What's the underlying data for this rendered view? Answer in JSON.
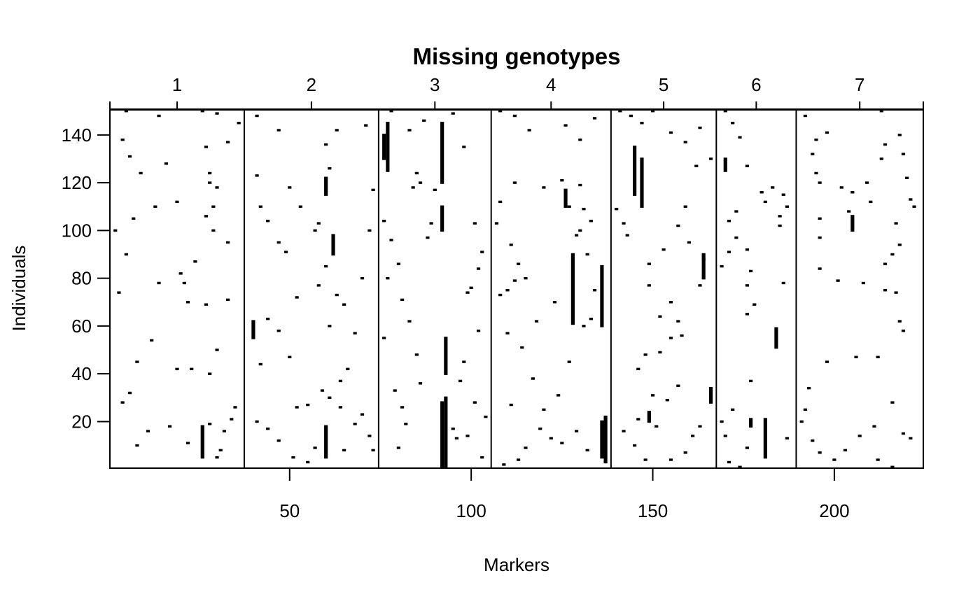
{
  "chart_data": {
    "type": "heatmap",
    "title": "Missing genotypes",
    "xlabel": "Markers",
    "ylabel": "Individuals",
    "xlim": [
      1,
      224
    ],
    "ylim": [
      1,
      150
    ],
    "x_ticks": [
      50,
      100,
      150,
      200
    ],
    "y_ticks": [
      20,
      40,
      60,
      80,
      100,
      120,
      140
    ],
    "grid": false,
    "legend": "none",
    "missing_color": "#000000",
    "chromosomes": [
      {
        "name": "1",
        "start": 1,
        "end": 37
      },
      {
        "name": "2",
        "start": 38,
        "end": 74
      },
      {
        "name": "3",
        "start": 75,
        "end": 105
      },
      {
        "name": "4",
        "start": 106,
        "end": 138
      },
      {
        "name": "5",
        "start": 139,
        "end": 167
      },
      {
        "name": "6",
        "start": 168,
        "end": 189
      },
      {
        "name": "7",
        "start": 190,
        "end": 224
      }
    ],
    "missing_runs": [
      {
        "marker": 93,
        "from": 1,
        "to": 30
      },
      {
        "marker": 92,
        "from": 1,
        "to": 28
      },
      {
        "marker": 92,
        "from": 120,
        "to": 145
      },
      {
        "marker": 92,
        "from": 100,
        "to": 110
      },
      {
        "marker": 93,
        "from": 40,
        "to": 55
      },
      {
        "marker": 128,
        "from": 61,
        "to": 90
      },
      {
        "marker": 136,
        "from": 60,
        "to": 85
      },
      {
        "marker": 137,
        "from": 3,
        "to": 22
      },
      {
        "marker": 136,
        "from": 5,
        "to": 20
      },
      {
        "marker": 181,
        "from": 5,
        "to": 21
      },
      {
        "marker": 184,
        "from": 51,
        "to": 59
      },
      {
        "marker": 145,
        "from": 115,
        "to": 135
      },
      {
        "marker": 147,
        "from": 110,
        "to": 130
      },
      {
        "marker": 77,
        "from": 125,
        "to": 145
      },
      {
        "marker": 76,
        "from": 130,
        "to": 140
      },
      {
        "marker": 40,
        "from": 55,
        "to": 62
      },
      {
        "marker": 60,
        "from": 115,
        "to": 122
      },
      {
        "marker": 62,
        "from": 90,
        "to": 98
      },
      {
        "marker": 60,
        "from": 5,
        "to": 18
      },
      {
        "marker": 26,
        "from": 5,
        "to": 18
      },
      {
        "marker": 126,
        "from": 110,
        "to": 117
      },
      {
        "marker": 166,
        "from": 28,
        "to": 34
      },
      {
        "marker": 164,
        "from": 80,
        "to": 90
      },
      {
        "marker": 170,
        "from": 125,
        "to": 130
      },
      {
        "marker": 205,
        "from": 100,
        "to": 106
      },
      {
        "marker": 177,
        "from": 18,
        "to": 21
      },
      {
        "marker": 149,
        "from": 20,
        "to": 24
      }
    ],
    "missing_points": [
      [
        5,
        150
      ],
      [
        14,
        148
      ],
      [
        26,
        150
      ],
      [
        30,
        149
      ],
      [
        36,
        145
      ],
      [
        33,
        137
      ],
      [
        27,
        135
      ],
      [
        28,
        124
      ],
      [
        28,
        120
      ],
      [
        30,
        118
      ],
      [
        29,
        110
      ],
      [
        27,
        106
      ],
      [
        29,
        100
      ],
      [
        33,
        95
      ],
      [
        24,
        87
      ],
      [
        20,
        82
      ],
      [
        14,
        78
      ],
      [
        21,
        78
      ],
      [
        22,
        70
      ],
      [
        27,
        69
      ],
      [
        33,
        71
      ],
      [
        30,
        50
      ],
      [
        12,
        54
      ],
      [
        8,
        45
      ],
      [
        19,
        42
      ],
      [
        28,
        40
      ],
      [
        23,
        42
      ],
      [
        35,
        26
      ],
      [
        34,
        21
      ],
      [
        32,
        16
      ],
      [
        28,
        19
      ],
      [
        31,
        8
      ],
      [
        30,
        5
      ],
      [
        8,
        10
      ],
      [
        11,
        16
      ],
      [
        17,
        18
      ],
      [
        22,
        11
      ],
      [
        4,
        28
      ],
      [
        6,
        32
      ],
      [
        3,
        74
      ],
      [
        5,
        90
      ],
      [
        2,
        100
      ],
      [
        7,
        105
      ],
      [
        13,
        110
      ],
      [
        19,
        112
      ],
      [
        16,
        128
      ],
      [
        6,
        131
      ],
      [
        9,
        124
      ],
      [
        4,
        138
      ],
      [
        41,
        148
      ],
      [
        47,
        142
      ],
      [
        50,
        118
      ],
      [
        53,
        110
      ],
      [
        58,
        103
      ],
      [
        57,
        100
      ],
      [
        60,
        85
      ],
      [
        63,
        73
      ],
      [
        65,
        69
      ],
      [
        61,
        60
      ],
      [
        58,
        77
      ],
      [
        52,
        72
      ],
      [
        49,
        91
      ],
      [
        47,
        95
      ],
      [
        44,
        104
      ],
      [
        42,
        110
      ],
      [
        41,
        123
      ],
      [
        44,
        63
      ],
      [
        47,
        58
      ],
      [
        50,
        47
      ],
      [
        42,
        44
      ],
      [
        41,
        20
      ],
      [
        44,
        17
      ],
      [
        47,
        12
      ],
      [
        51,
        5
      ],
      [
        55,
        3
      ],
      [
        57,
        9
      ],
      [
        55,
        27
      ],
      [
        52,
        26
      ],
      [
        59,
        33
      ],
      [
        61,
        30
      ],
      [
        64,
        26
      ],
      [
        65,
        8
      ],
      [
        68,
        19
      ],
      [
        72,
        14
      ],
      [
        73,
        8
      ],
      [
        70,
        23
      ],
      [
        66,
        42
      ],
      [
        64,
        37
      ],
      [
        68,
        57
      ],
      [
        70,
        80
      ],
      [
        73,
        117
      ],
      [
        72,
        100
      ],
      [
        71,
        144
      ],
      [
        60,
        136
      ],
      [
        63,
        142
      ],
      [
        61,
        126
      ],
      [
        76,
        104
      ],
      [
        78,
        96
      ],
      [
        80,
        86
      ],
      [
        81,
        71
      ],
      [
        83,
        62
      ],
      [
        85,
        48
      ],
      [
        81,
        26
      ],
      [
        82,
        19
      ],
      [
        80,
        9
      ],
      [
        86,
        36
      ],
      [
        88,
        97
      ],
      [
        89,
        103
      ],
      [
        90,
        117
      ],
      [
        86,
        120
      ],
      [
        84,
        118
      ],
      [
        87,
        146
      ],
      [
        95,
        149
      ],
      [
        98,
        135
      ],
      [
        101,
        103
      ],
      [
        103,
        91
      ],
      [
        102,
        84
      ],
      [
        100,
        76
      ],
      [
        99,
        74
      ],
      [
        102,
        58
      ],
      [
        98,
        45
      ],
      [
        97,
        37
      ],
      [
        101,
        28
      ],
      [
        104,
        22
      ],
      [
        99,
        14
      ],
      [
        96,
        13
      ],
      [
        95,
        17
      ],
      [
        103,
        5
      ],
      [
        78,
        152
      ],
      [
        77,
        80
      ],
      [
        76,
        55
      ],
      [
        79,
        33
      ],
      [
        83,
        142
      ],
      [
        85,
        124
      ],
      [
        108,
        150
      ],
      [
        112,
        148
      ],
      [
        116,
        142
      ],
      [
        120,
        118
      ],
      [
        125,
        121
      ],
      [
        127,
        110
      ],
      [
        131,
        109
      ],
      [
        130,
        100
      ],
      [
        133,
        104
      ],
      [
        129,
        98
      ],
      [
        132,
        90
      ],
      [
        134,
        75
      ],
      [
        133,
        63
      ],
      [
        131,
        60
      ],
      [
        127,
        45
      ],
      [
        124,
        31
      ],
      [
        117,
        38
      ],
      [
        114,
        51
      ],
      [
        110,
        57
      ],
      [
        108,
        73
      ],
      [
        110,
        75
      ],
      [
        112,
        79
      ],
      [
        115,
        80
      ],
      [
        113,
        86
      ],
      [
        111,
        94
      ],
      [
        107,
        103
      ],
      [
        108,
        112
      ],
      [
        112,
        120
      ],
      [
        118,
        62
      ],
      [
        123,
        70
      ],
      [
        119,
        17
      ],
      [
        122,
        13
      ],
      [
        125,
        11
      ],
      [
        115,
        9
      ],
      [
        113,
        4
      ],
      [
        109,
        2
      ],
      [
        111,
        27
      ],
      [
        120,
        25
      ],
      [
        129,
        16
      ],
      [
        132,
        8
      ],
      [
        126,
        144
      ],
      [
        130,
        138
      ],
      [
        134,
        147
      ],
      [
        130,
        119
      ],
      [
        141,
        150
      ],
      [
        144,
        148
      ],
      [
        147,
        145
      ],
      [
        150,
        150
      ],
      [
        155,
        141
      ],
      [
        159,
        137
      ],
      [
        163,
        143
      ],
      [
        166,
        130
      ],
      [
        162,
        127
      ],
      [
        159,
        110
      ],
      [
        157,
        102
      ],
      [
        160,
        95
      ],
      [
        164,
        88
      ],
      [
        163,
        77
      ],
      [
        157,
        62
      ],
      [
        155,
        55
      ],
      [
        152,
        49
      ],
      [
        148,
        48
      ],
      [
        146,
        42
      ],
      [
        150,
        31
      ],
      [
        154,
        29
      ],
      [
        157,
        35
      ],
      [
        163,
        18
      ],
      [
        161,
        14
      ],
      [
        159,
        7
      ],
      [
        155,
        4
      ],
      [
        148,
        4
      ],
      [
        145,
        10
      ],
      [
        142,
        16
      ],
      [
        146,
        21
      ],
      [
        151,
        18
      ],
      [
        142,
        103
      ],
      [
        140,
        109
      ],
      [
        143,
        98
      ],
      [
        149,
        77
      ],
      [
        152,
        64
      ],
      [
        155,
        70
      ],
      [
        158,
        56
      ],
      [
        153,
        92
      ],
      [
        149,
        86
      ],
      [
        170,
        150
      ],
      [
        172,
        145
      ],
      [
        174,
        139
      ],
      [
        176,
        127
      ],
      [
        173,
        108
      ],
      [
        171,
        104
      ],
      [
        173,
        97
      ],
      [
        177,
        83
      ],
      [
        176,
        77
      ],
      [
        178,
        69
      ],
      [
        176,
        65
      ],
      [
        177,
        37
      ],
      [
        172,
        25
      ],
      [
        169,
        20
      ],
      [
        170,
        14
      ],
      [
        171,
        3
      ],
      [
        174,
        1
      ],
      [
        176,
        9
      ],
      [
        180,
        116
      ],
      [
        186,
        115
      ],
      [
        187,
        110
      ],
      [
        185,
        106
      ],
      [
        185,
        102
      ],
      [
        186,
        78
      ],
      [
        187,
        13
      ],
      [
        181,
        112
      ],
      [
        183,
        118
      ],
      [
        171,
        91
      ],
      [
        169,
        85
      ],
      [
        176,
        92
      ],
      [
        192,
        148
      ],
      [
        194,
        132
      ],
      [
        196,
        120
      ],
      [
        202,
        118
      ],
      [
        204,
        108
      ],
      [
        205,
        116
      ],
      [
        210,
        112
      ],
      [
        209,
        120
      ],
      [
        213,
        130
      ],
      [
        214,
        136
      ],
      [
        218,
        140
      ],
      [
        219,
        132
      ],
      [
        220,
        122
      ],
      [
        221,
        113
      ],
      [
        222,
        110
      ],
      [
        217,
        103
      ],
      [
        218,
        94
      ],
      [
        216,
        90
      ],
      [
        214,
        86
      ],
      [
        214,
        75
      ],
      [
        217,
        74
      ],
      [
        218,
        62
      ],
      [
        219,
        58
      ],
      [
        212,
        47
      ],
      [
        206,
        47
      ],
      [
        198,
        45
      ],
      [
        193,
        34
      ],
      [
        192,
        25
      ],
      [
        191,
        20
      ],
      [
        194,
        12
      ],
      [
        196,
        7
      ],
      [
        200,
        4
      ],
      [
        203,
        8
      ],
      [
        207,
        14
      ],
      [
        211,
        18
      ],
      [
        212,
        4
      ],
      [
        216,
        1
      ],
      [
        219,
        15
      ],
      [
        221,
        13
      ],
      [
        216,
        28
      ],
      [
        208,
        78
      ],
      [
        201,
        79
      ],
      [
        196,
        84
      ],
      [
        196,
        97
      ],
      [
        196,
        105
      ],
      [
        195,
        124
      ],
      [
        195,
        138
      ],
      [
        198,
        141
      ],
      [
        213,
        150
      ]
    ]
  }
}
